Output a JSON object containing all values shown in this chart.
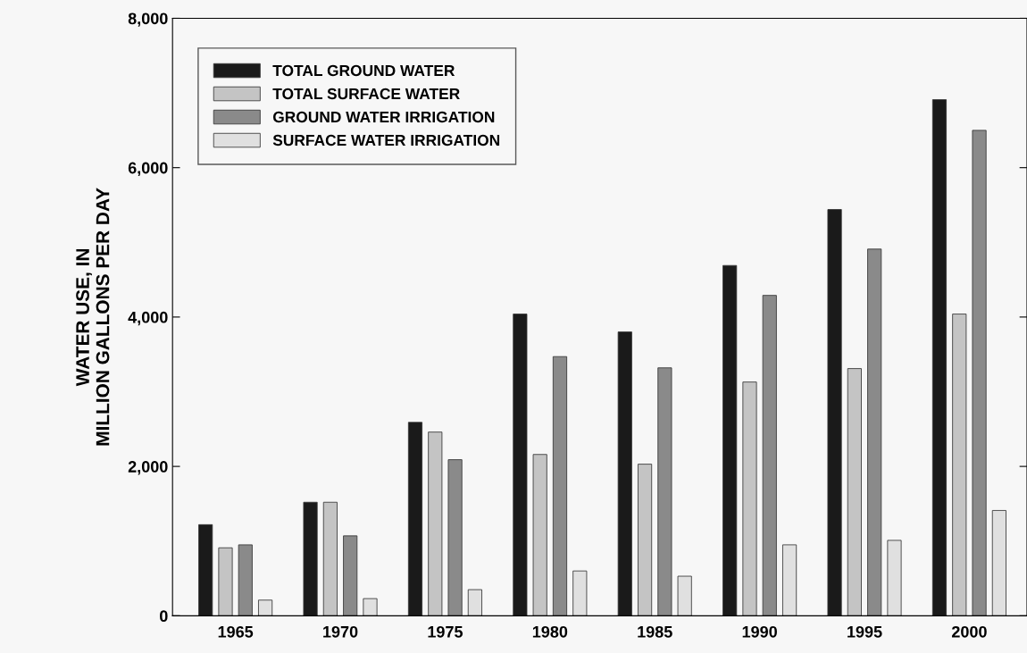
{
  "chart_data": {
    "type": "bar",
    "ylabel": "WATER USE, IN\nMILLION GALLONS PER DAY",
    "categories": [
      "1965",
      "1970",
      "1975",
      "1980",
      "1985",
      "1990",
      "1995",
      "2000"
    ],
    "series": [
      {
        "name": "TOTAL GROUND WATER",
        "color": "#1a1a1a",
        "values": [
          1220,
          1520,
          2590,
          4040,
          3800,
          4690,
          5440,
          6910
        ]
      },
      {
        "name": "TOTAL SURFACE WATER",
        "color": "#c4c4c4",
        "values": [
          910,
          1520,
          2460,
          2160,
          2030,
          3130,
          3310,
          4040
        ]
      },
      {
        "name": "GROUND WATER IRRIGATION",
        "color": "#8a8a8a",
        "values": [
          950,
          1070,
          2090,
          3470,
          3320,
          4290,
          4910,
          6500
        ]
      },
      {
        "name": "SURFACE WATER IRRIGATION",
        "color": "#e0e0e0",
        "values": [
          210,
          230,
          350,
          600,
          530,
          950,
          1010,
          1410
        ]
      }
    ],
    "ylim": [
      0,
      8000
    ],
    "yticks": [
      {
        "value": 0,
        "label": "0"
      },
      {
        "value": 2000,
        "label": "2,000"
      },
      {
        "value": 4000,
        "label": "4,000"
      },
      {
        "value": 6000,
        "label": "6,000"
      },
      {
        "value": 8000,
        "label": "8,000"
      }
    ],
    "grid": false,
    "legend": "top left"
  }
}
